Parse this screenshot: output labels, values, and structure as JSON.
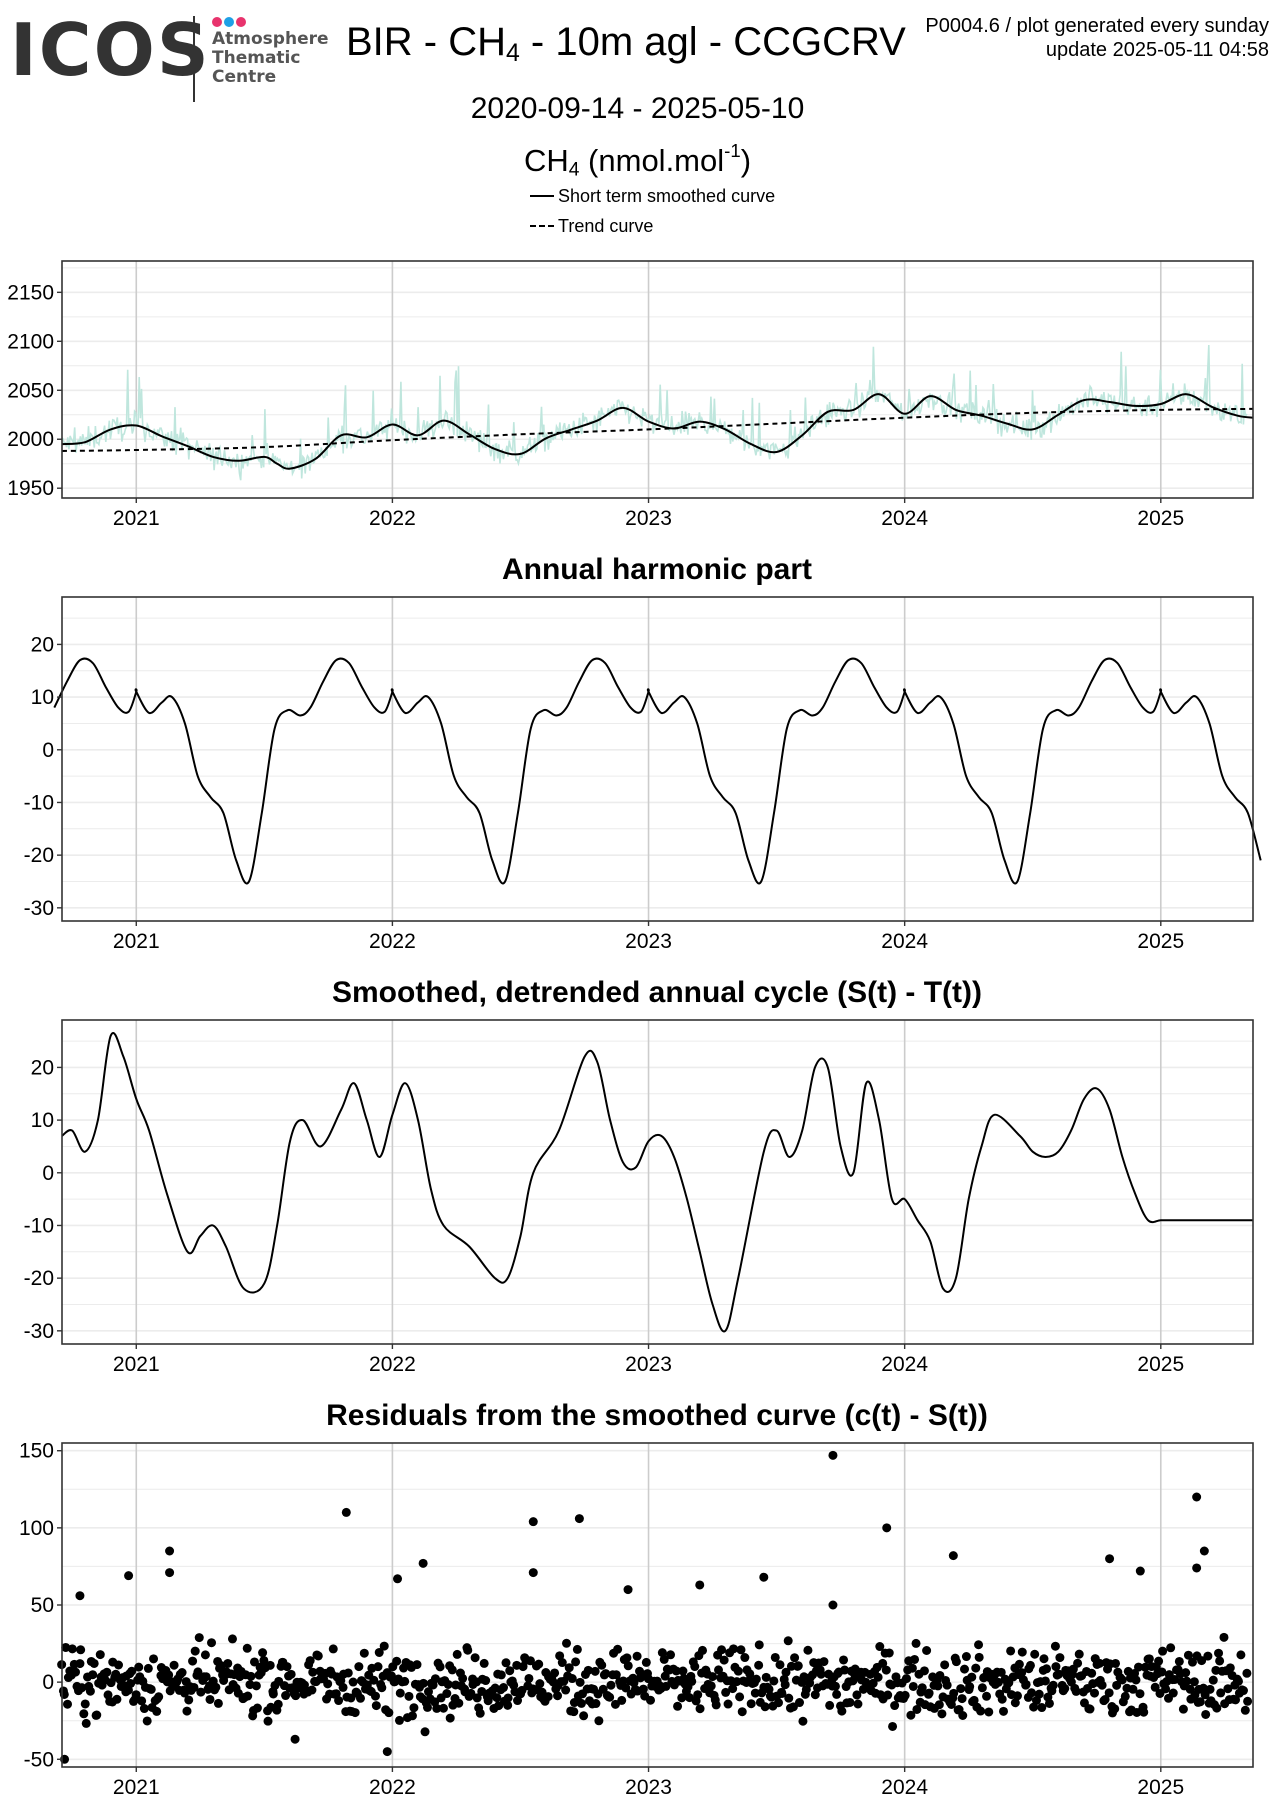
{
  "header": {
    "logo": {
      "word": "ICOS",
      "lines": [
        "Atmosphere",
        "Thematic",
        "Centre"
      ],
      "dot_colors": [
        "#e8336d",
        "#1fa0e6",
        "#e8336d"
      ]
    },
    "title_pre": "BIR - CH",
    "title_sub": "4",
    "title_post": " - 10m agl - CCGCRV",
    "info_line1": "P0004.6 / plot generated every sunday",
    "info_line2": "update  2025-05-11 04:58",
    "date_range": "2020-09-14 - 2025-05-10",
    "ylabel_pre": "CH",
    "ylabel_sub": "4",
    "ylabel_mid": " (nmol.mol",
    "ylabel_sup": "-1",
    "ylabel_post": ")"
  },
  "legend": [
    {
      "label": "Short term smoothed curve",
      "style": "solid"
    },
    {
      "label": "Trend curve",
      "style": "dashed"
    }
  ],
  "colors": {
    "raw": "#bfe6dd",
    "line": "#000000",
    "grid_major": "#cccccc",
    "grid_minor": "#ececec"
  },
  "chart_data": [
    {
      "type": "line",
      "title": "",
      "xlim": [
        2020.71,
        2025.36
      ],
      "ylim": [
        1940,
        2182
      ],
      "yticks": [
        1950,
        2000,
        2050,
        2100,
        2150
      ],
      "xticks": [
        2021,
        2022,
        2023,
        2024,
        2025
      ],
      "series": [
        {
          "name": "Short term smoothed curve",
          "style": "solid",
          "x": [
            2020.71,
            2020.8,
            2020.9,
            2021.0,
            2021.1,
            2021.2,
            2021.3,
            2021.4,
            2021.5,
            2021.55,
            2021.6,
            2021.7,
            2021.8,
            2021.9,
            2022.0,
            2022.1,
            2022.2,
            2022.3,
            2022.4,
            2022.5,
            2022.6,
            2022.7,
            2022.8,
            2022.9,
            2023.0,
            2023.1,
            2023.2,
            2023.3,
            2023.4,
            2023.5,
            2023.6,
            2023.7,
            2023.8,
            2023.9,
            2024.0,
            2024.1,
            2024.2,
            2024.3,
            2024.4,
            2024.5,
            2024.6,
            2024.7,
            2024.8,
            2024.9,
            2025.0,
            2025.1,
            2025.2,
            2025.3,
            2025.36
          ],
          "y": [
            1995,
            1997,
            2010,
            2014,
            2003,
            1993,
            1982,
            1978,
            1982,
            1975,
            1970,
            1980,
            2004,
            2002,
            2015,
            2004,
            2019,
            2005,
            1990,
            1985,
            2001,
            2010,
            2019,
            2032,
            2018,
            2011,
            2018,
            2010,
            1995,
            1987,
            2004,
            2028,
            2030,
            2046,
            2026,
            2044,
            2030,
            2024,
            2016,
            2010,
            2025,
            2040,
            2038,
            2034,
            2036,
            2046,
            2033,
            2024,
            2022
          ]
        },
        {
          "name": "Trend curve",
          "style": "dashed",
          "x": [
            2020.71,
            2021.0,
            2021.5,
            2022.0,
            2022.5,
            2023.0,
            2023.5,
            2024.0,
            2024.5,
            2025.0,
            2025.36
          ],
          "y": [
            1988,
            1989,
            1992,
            1999,
            2005,
            2010,
            2016,
            2022,
            2027,
            2030,
            2031
          ]
        }
      ]
    },
    {
      "type": "line",
      "title": "Annual harmonic part",
      "xlim": [
        2020.71,
        2025.36
      ],
      "ylim": [
        -32.5,
        29
      ],
      "yticks": [
        -30,
        -20,
        -10,
        0,
        10,
        20
      ],
      "xticks": [
        2021,
        2022,
        2023,
        2024,
        2025
      ],
      "period": 1,
      "cycle": {
        "x": [
          0.0,
          0.05,
          0.1,
          0.14,
          0.19,
          0.24,
          0.29,
          0.34,
          0.39,
          0.44,
          0.49,
          0.54,
          0.59,
          0.64,
          0.68,
          0.73,
          0.78,
          0.83,
          0.88,
          0.93,
          0.97,
          1.0
        ],
        "y": [
          11,
          7,
          9,
          10,
          5,
          -5,
          -9,
          -12,
          -21,
          -25,
          -12,
          4,
          7.5,
          6.5,
          8,
          13,
          17,
          16.5,
          12,
          8,
          7.2,
          11
        ]
      },
      "series": [
        {
          "style": "solid"
        }
      ]
    },
    {
      "type": "line",
      "title": "Smoothed, detrended annual cycle (S(t) - T(t))",
      "xlim": [
        2020.71,
        2025.36
      ],
      "ylim": [
        -32.5,
        29
      ],
      "yticks": [
        -30,
        -20,
        -10,
        0,
        10,
        20
      ],
      "xticks": [
        2021,
        2022,
        2023,
        2024,
        2025
      ],
      "series": [
        {
          "style": "solid",
          "x": [
            2020.71,
            2020.75,
            2020.8,
            2020.85,
            2020.9,
            2020.95,
            2021.0,
            2021.05,
            2021.12,
            2021.2,
            2021.25,
            2021.3,
            2021.35,
            2021.42,
            2021.5,
            2021.55,
            2021.6,
            2021.65,
            2021.72,
            2021.8,
            2021.85,
            2021.9,
            2021.95,
            2022.0,
            2022.05,
            2022.1,
            2022.15,
            2022.2,
            2022.3,
            2022.4,
            2022.45,
            2022.5,
            2022.55,
            2022.65,
            2022.75,
            2022.8,
            2022.85,
            2022.9,
            2022.95,
            2023.0,
            2023.05,
            2023.1,
            2023.15,
            2023.2,
            2023.25,
            2023.3,
            2023.35,
            2023.45,
            2023.5,
            2023.55,
            2023.6,
            2023.65,
            2023.7,
            2023.75,
            2023.8,
            2023.85,
            2023.9,
            2023.95,
            2024.0,
            2024.05,
            2024.1,
            2024.15,
            2024.2,
            2024.25,
            2024.3,
            2024.35,
            2024.45,
            2024.5,
            2024.55,
            2024.6,
            2024.65,
            2024.7,
            2024.75,
            2024.8,
            2024.85,
            2024.9,
            2024.95,
            2025.0,
            2025.05,
            2025.1,
            2025.15,
            2025.2,
            2025.25,
            2025.3,
            2025.36
          ],
          "y": [
            7,
            8,
            4,
            10,
            26,
            22,
            14,
            8,
            -4,
            -15,
            -12,
            -10,
            -14,
            -22,
            -21,
            -10,
            6,
            10,
            5,
            12,
            17,
            10,
            3,
            11,
            17,
            10,
            -3,
            -10,
            -14,
            -20,
            -20,
            -12,
            0,
            8,
            22,
            21,
            10,
            2,
            1,
            6,
            7,
            3,
            -5,
            -15,
            -25,
            -30,
            -20,
            4,
            8,
            3,
            8,
            20,
            20,
            5,
            0,
            17,
            10,
            -5,
            -5,
            -9,
            -13,
            -22,
            -20,
            -5,
            5,
            11,
            7,
            4,
            3,
            4,
            8,
            14,
            16,
            12,
            3,
            -4,
            -9,
            -9,
            -9,
            -9,
            -9,
            -9,
            -9,
            -9,
            -9
          ]
        }
      ]
    },
    {
      "type": "scatter",
      "title": "Residuals from the smoothed curve (c(t) - S(t))",
      "xlim": [
        2020.71,
        2025.36
      ],
      "ylim": [
        -55,
        155
      ],
      "yticks": [
        -50,
        0,
        50,
        100,
        150
      ],
      "xticks": [
        2021,
        2022,
        2023,
        2024,
        2025
      ],
      "series": [
        {
          "name": "residuals",
          "outliers": [
            [
              2020.72,
              -50
            ],
            [
              2020.78,
              56
            ],
            [
              2020.97,
              69
            ],
            [
              2021.13,
              85
            ],
            [
              2021.13,
              71
            ],
            [
              2021.62,
              -37
            ],
            [
              2021.82,
              110
            ],
            [
              2021.98,
              -45
            ],
            [
              2022.02,
              67
            ],
            [
              2022.12,
              77
            ],
            [
              2022.55,
              104
            ],
            [
              2022.55,
              71
            ],
            [
              2022.73,
              106
            ],
            [
              2022.92,
              60
            ],
            [
              2023.2,
              63
            ],
            [
              2023.45,
              68
            ],
            [
              2023.72,
              147
            ],
            [
              2023.72,
              50
            ],
            [
              2023.93,
              100
            ],
            [
              2024.19,
              82
            ],
            [
              2024.8,
              80
            ],
            [
              2024.92,
              72
            ],
            [
              2025.14,
              120
            ],
            [
              2025.14,
              74
            ],
            [
              2025.17,
              85
            ]
          ],
          "bulk": {
            "start": 2020.71,
            "end": 2025.34,
            "count": 880,
            "center": 0,
            "spread": 15
          }
        }
      ]
    }
  ]
}
